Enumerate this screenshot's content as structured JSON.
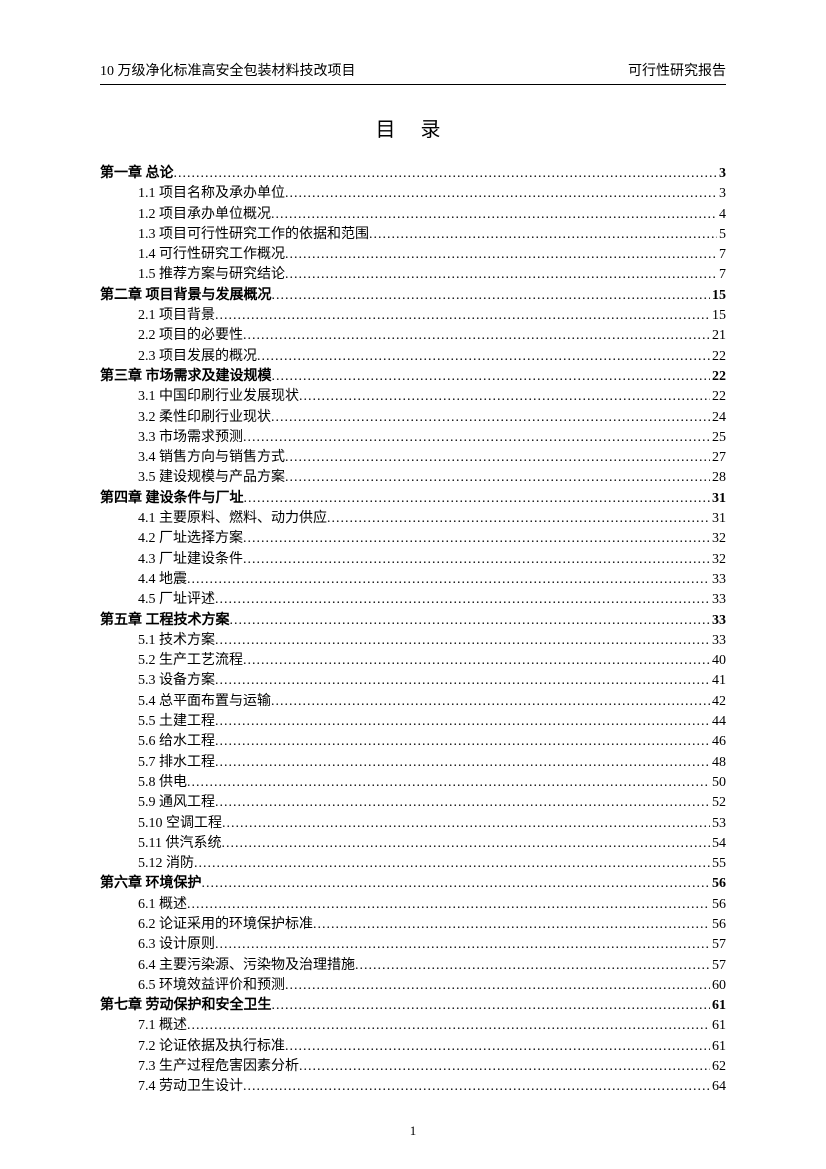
{
  "header": {
    "left": "10 万级净化标准高安全包装材料技改项目",
    "right": "可行性研究报告"
  },
  "title": "目 录",
  "footer_page": "1",
  "toc": [
    {
      "level": 1,
      "label": "第一章   总论",
      "page": "3"
    },
    {
      "level": 2,
      "label": "1.1 项目名称及承办单位",
      "page": "3"
    },
    {
      "level": 2,
      "label": "1.2 项目承办单位概况",
      "page": "4"
    },
    {
      "level": 2,
      "label": "1.3  项目可行性研究工作的依据和范围",
      "page": "5"
    },
    {
      "level": 2,
      "label": "1.4  可行性研究工作概况",
      "page": "7"
    },
    {
      "level": 2,
      "label": "1.5  推荐方案与研究结论",
      "page": "7"
    },
    {
      "level": 1,
      "label": "第二章    项目背景与发展概况",
      "page": "15"
    },
    {
      "level": 2,
      "label": "2.1  项目背景",
      "page": "15"
    },
    {
      "level": 2,
      "label": "2.2 项目的必要性",
      "page": "21"
    },
    {
      "level": 2,
      "label": "2.3 项目发展的概况",
      "page": "22"
    },
    {
      "level": 1,
      "label": "第三章  市场需求及建设规模",
      "page": "22"
    },
    {
      "level": 2,
      "label": "3.1 中国印刷行业发展现状",
      "page": "22"
    },
    {
      "level": 2,
      "label": "3.2 柔性印刷行业现状",
      "page": "24"
    },
    {
      "level": 2,
      "label": "3.3 市场需求预测",
      "page": "25"
    },
    {
      "level": 2,
      "label": "3.4 销售方向与销售方式",
      "page": "27"
    },
    {
      "level": 2,
      "label": "3.5 建设规模与产品方案",
      "page": "28"
    },
    {
      "level": 1,
      "label": "第四章   建设条件与厂址",
      "page": "31"
    },
    {
      "level": 2,
      "label": "4.1 主要原料、燃料、动力供应",
      "page": "31"
    },
    {
      "level": 2,
      "label": "4.2 厂址选择方案",
      "page": "32"
    },
    {
      "level": 2,
      "label": "4.3 厂址建设条件",
      "page": "32"
    },
    {
      "level": 2,
      "label": "4.4 地震",
      "page": "33"
    },
    {
      "level": 2,
      "label": "4.5 厂址评述",
      "page": "33"
    },
    {
      "level": 1,
      "label": "第五章  工程技术方案",
      "page": "33"
    },
    {
      "level": 2,
      "label": "5.1 技术方案",
      "page": "33"
    },
    {
      "level": 2,
      "label": "5.2 生产工艺流程",
      "page": "40"
    },
    {
      "level": 2,
      "label": "5.3 设备方案",
      "page": "41"
    },
    {
      "level": 2,
      "label": "5.4   总平面布置与运输",
      "page": "42"
    },
    {
      "level": 2,
      "label": "5.5  土建工程",
      "page": "44"
    },
    {
      "level": 2,
      "label": "5.6  给水工程",
      "page": "46"
    },
    {
      "level": 2,
      "label": "5.7  排水工程",
      "page": "48"
    },
    {
      "level": 2,
      "label": "5.8  供电",
      "page": "50"
    },
    {
      "level": 2,
      "label": "5.9 通风工程",
      "page": "52"
    },
    {
      "level": 2,
      "label": "5.10 空调工程",
      "page": "53"
    },
    {
      "level": 2,
      "label": "5.11 供汽系统",
      "page": "54"
    },
    {
      "level": 2,
      "label": "5.12 消防",
      "page": "55"
    },
    {
      "level": 1,
      "label": "第六章    环境保护",
      "page": "56"
    },
    {
      "level": 2,
      "label": "6.1 概述",
      "page": "56"
    },
    {
      "level": 2,
      "label": "6.2 论证采用的环境保护标准",
      "page": "56"
    },
    {
      "level": 2,
      "label": "6.3 设计原则",
      "page": "57"
    },
    {
      "level": 2,
      "label": "6.4 主要污染源、污染物及治理措施",
      "page": "57"
    },
    {
      "level": 2,
      "label": "6.5 环境效益评价和预测",
      "page": "60"
    },
    {
      "level": 1,
      "label": "第七章  劳动保护和安全卫生",
      "page": "61"
    },
    {
      "level": 2,
      "label": "7.1 概述",
      "page": "61"
    },
    {
      "level": 2,
      "label": "7.2 论证依据及执行标准",
      "page": "61"
    },
    {
      "level": 2,
      "label": "7.3 生产过程危害因素分析",
      "page": "62"
    },
    {
      "level": 2,
      "label": "7.4 劳动卫生设计",
      "page": "64"
    }
  ]
}
